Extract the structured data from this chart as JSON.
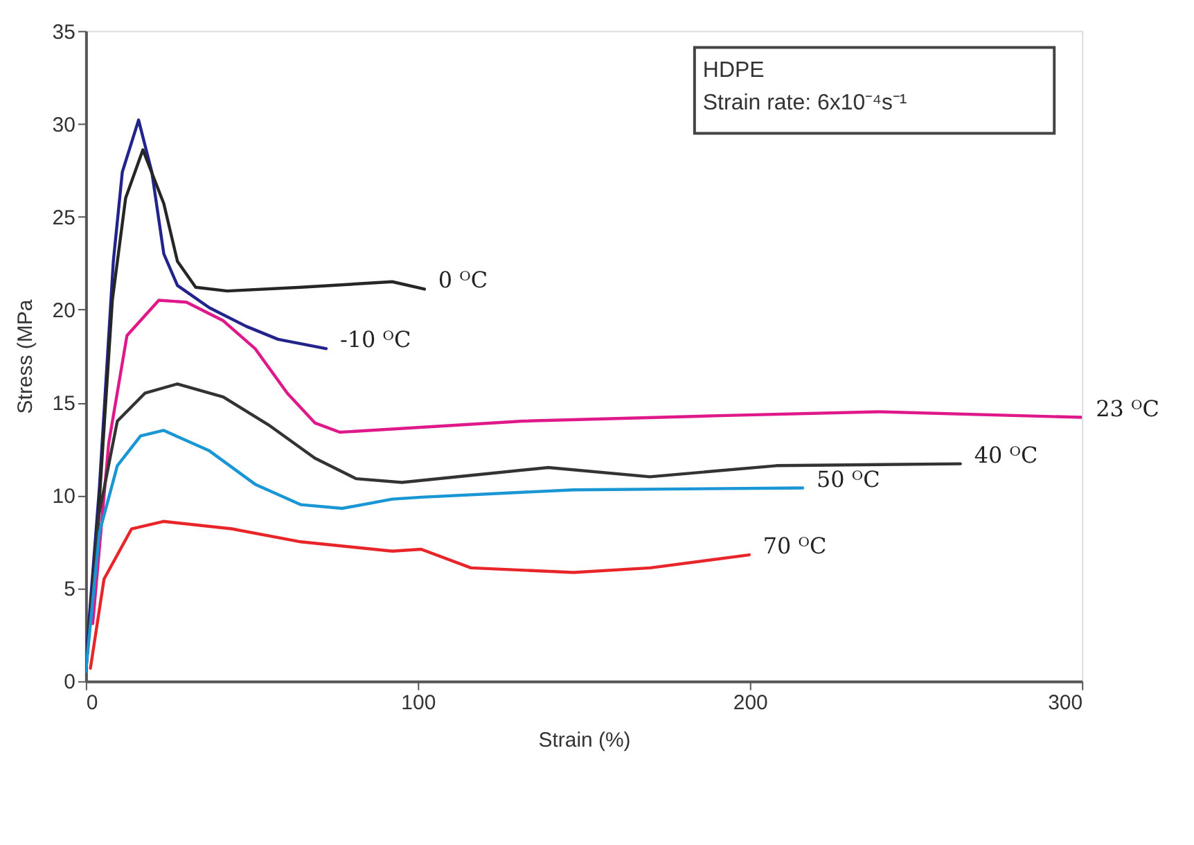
{
  "chart_data": {
    "type": "line",
    "xlabel": "Strain (%)",
    "ylabel": "Stress (MPa",
    "xlim": [
      0,
      300
    ],
    "xticks": [
      0,
      100,
      200,
      300
    ],
    "ylim": [
      0,
      35
    ],
    "yticks": [
      0,
      5,
      10,
      15,
      20,
      25,
      30,
      35
    ],
    "grid": false,
    "marker": "none",
    "line_style": "solid",
    "annotations": [
      "HDPE",
      "Strain rate: 6x10⁻⁴s⁻¹"
    ],
    "series": [
      {
        "name": "-10 ᴼC",
        "color": "#23238c",
        "x": [
          0,
          4.1,
          8.3,
          11,
          15.9,
          19.9,
          23.5,
          27.6,
          37.2,
          48.3,
          57.9,
          72.4
        ],
        "values": [
          1,
          10.4,
          22.6,
          27.4,
          30.2,
          27.4,
          23,
          21.3,
          20.1,
          19.1,
          18.4,
          17.9
        ]
      },
      {
        "name": "0 ᴼC",
        "color": "#262626",
        "x": [
          0,
          4,
          8,
          12,
          17.2,
          23.5,
          27.6,
          33.1,
          42.6,
          64.8,
          92.3,
          102
        ],
        "values": [
          0.5,
          9.5,
          20.5,
          26,
          28.6,
          25.7,
          22.6,
          21.2,
          21,
          21.2,
          21.5,
          21.1
        ]
      },
      {
        "name": "23 ᴼC",
        "color": "#e0198a",
        "x": [
          2.1,
          6.9,
          12.4,
          22,
          30.3,
          41.4,
          51,
          60.7,
          69,
          76.5,
          131.6,
          192.8,
          238.7,
          300
        ],
        "values": [
          3.1,
          12.8,
          18.6,
          20.5,
          20.4,
          19.4,
          17.9,
          15.5,
          13.9,
          13.4,
          14,
          14.3,
          14.5,
          14.2
        ]
      },
      {
        "name": "40 ᴼC",
        "color": "#333333",
        "x": [
          0,
          4,
          9.5,
          17.8,
          27.6,
          41.4,
          55,
          69,
          81.4,
          95.2,
          139.3,
          169.9,
          208,
          263.4
        ],
        "values": [
          0.5,
          9,
          14,
          15.5,
          16,
          15.3,
          13.8,
          12,
          10.9,
          10.7,
          11.5,
          11,
          11.6,
          11.7
        ]
      },
      {
        "name": "50 ᴼC",
        "color": "#1a96d4",
        "x": [
          0,
          4.1,
          9.5,
          16.5,
          23.4,
          37.2,
          51,
          64.8,
          77.2,
          92.3,
          101,
          146.9,
          215.9
        ],
        "values": [
          0.5,
          8,
          11.6,
          13.2,
          13.5,
          12.4,
          10.6,
          9.5,
          9.3,
          9.8,
          9.9,
          10.3,
          10.4
        ]
      },
      {
        "name": "70 ᴼC",
        "color": "#e8262a",
        "x": [
          1.4,
          5.5,
          13.8,
          23.4,
          44,
          64.8,
          92.3,
          101,
          116,
          146.9,
          170,
          199.8
        ],
        "values": [
          0.7,
          5.5,
          8.2,
          8.6,
          8.2,
          7.5,
          7,
          7.1,
          6.1,
          5.85,
          6.1,
          6.8
        ]
      }
    ]
  }
}
